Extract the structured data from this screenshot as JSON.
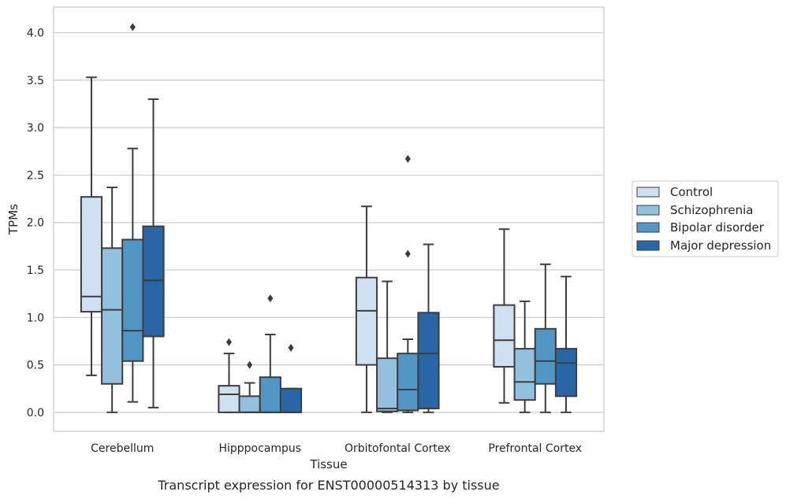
{
  "caption": "Transcript expression for ENST00000514313 by tissue",
  "chart_data": {
    "type": "box",
    "xlabel": "Tissue",
    "ylabel": "TPMs",
    "ylim": [
      -0.2,
      4.27
    ],
    "yticks": [
      "0.0",
      "0.5",
      "1.0",
      "1.5",
      "2.0",
      "2.5",
      "3.0",
      "3.5",
      "4.0"
    ],
    "categories": [
      "Cerebellum",
      "Hipppocampus",
      "Orbitofontal Cortex",
      "Prefrontal Cortex"
    ],
    "grid": true,
    "legend_position": "right",
    "series": [
      {
        "name": "Control",
        "color": "#cfe0f0",
        "boxes": [
          {
            "whislo": 0.39,
            "q1": 1.06,
            "med": 1.22,
            "q3": 2.27,
            "whishi": 3.53,
            "fliers": []
          },
          {
            "whislo": 0.0,
            "q1": 0.0,
            "med": 0.19,
            "q3": 0.28,
            "whishi": 0.62,
            "fliers": [
              0.74
            ]
          },
          {
            "whislo": 0.0,
            "q1": 0.5,
            "med": 1.07,
            "q3": 1.42,
            "whishi": 2.17,
            "fliers": []
          },
          {
            "whislo": 0.1,
            "q1": 0.48,
            "med": 0.76,
            "q3": 1.13,
            "whishi": 1.93,
            "fliers": []
          }
        ]
      },
      {
        "name": "Schizophrenia",
        "color": "#93c0dc",
        "boxes": [
          {
            "whislo": 0.0,
            "q1": 0.3,
            "med": 1.08,
            "q3": 1.73,
            "whishi": 2.37,
            "fliers": []
          },
          {
            "whislo": 0.0,
            "q1": 0.0,
            "med": 0.0,
            "q3": 0.17,
            "whishi": 0.31,
            "fliers": [
              0.5
            ]
          },
          {
            "whislo": 0.0,
            "q1": 0.01,
            "med": 0.04,
            "q3": 0.57,
            "whishi": 1.38,
            "fliers": []
          },
          {
            "whislo": 0.0,
            "q1": 0.13,
            "med": 0.32,
            "q3": 0.67,
            "whishi": 1.17,
            "fliers": []
          }
        ]
      },
      {
        "name": "Bipolar disorder",
        "color": "#5296c5",
        "boxes": [
          {
            "whislo": 0.11,
            "q1": 0.54,
            "med": 0.86,
            "q3": 1.82,
            "whishi": 2.78,
            "fliers": [
              4.06
            ]
          },
          {
            "whislo": 0.0,
            "q1": 0.0,
            "med": 0.0,
            "q3": 0.37,
            "whishi": 0.82,
            "fliers": [
              1.2
            ]
          },
          {
            "whislo": 0.0,
            "q1": 0.02,
            "med": 0.24,
            "q3": 0.62,
            "whishi": 0.77,
            "fliers": [
              1.67,
              2.67
            ]
          },
          {
            "whislo": 0.0,
            "q1": 0.3,
            "med": 0.54,
            "q3": 0.88,
            "whishi": 1.56,
            "fliers": []
          }
        ]
      },
      {
        "name": "Major depression",
        "color": "#2a65a5",
        "boxes": [
          {
            "whislo": 0.05,
            "q1": 0.8,
            "med": 1.39,
            "q3": 1.96,
            "whishi": 3.3,
            "fliers": []
          },
          {
            "whislo": 0.0,
            "q1": 0.0,
            "med": 0.0,
            "q3": 0.25,
            "whishi": 0.25,
            "fliers": [
              0.68
            ]
          },
          {
            "whislo": 0.0,
            "q1": 0.04,
            "med": 0.62,
            "q3": 1.05,
            "whishi": 1.77,
            "fliers": []
          },
          {
            "whislo": 0.0,
            "q1": 0.17,
            "med": 0.52,
            "q3": 0.67,
            "whishi": 1.43,
            "fliers": []
          }
        ]
      }
    ]
  }
}
